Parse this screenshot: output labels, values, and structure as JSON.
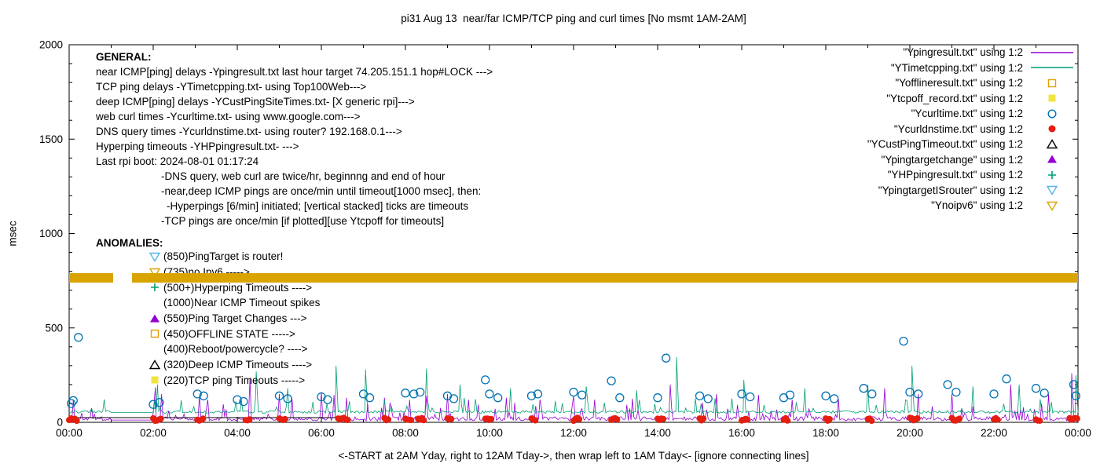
{
  "title": "pi31 Aug 13  near/far ICMP/TCP ping and curl times [No msmt 1AM-2AM]",
  "ylabel": "msec",
  "xnote": "<-START at 2AM Yday, right to 12AM Tday->, then wrap left to 1AM Tday<- [ignore connecting lines]",
  "general": {
    "heading": "GENERAL:",
    "lines": [
      {
        "text": "near ICMP[ping] delays -Ypingresult.txt last hour target 74.205.151.1 hop#LOCK --->",
        "indent": 0
      },
      {
        "text": "TCP ping delays -YTimetcpping.txt- using Top100Web--->",
        "indent": 0
      },
      {
        "text": "deep ICMP[ping] delays -YCustPingSiteTimes.txt- [X generic rpi]--->",
        "indent": 0
      },
      {
        "text": "web curl times -Ycurltime.txt- using www.google.com--->",
        "indent": 0
      },
      {
        "text": "DNS query times -Ycurldnstime.txt- using router? 192.168.0.1--->",
        "indent": 0
      },
      {
        "text": "Hyperping timeouts -YHPpingresult.txt- --->",
        "indent": 0
      },
      {
        "text": "Last rpi boot: 2024-08-01 01:17:24",
        "indent": 0
      },
      {
        "text": "-DNS query, web curl are twice/hr, beginnng and end of hour",
        "indent": 83
      },
      {
        "text": "-near,deep ICMP pings are once/min until timeout[1000 msec], then:",
        "indent": 83
      },
      {
        "text": "-Hyperpings [6/min] initiated; [vertical stacked] ticks are timeouts",
        "indent": 90
      },
      {
        "text": "-TCP pings are once/min [if plotted][use Ytcpoff for timeouts]",
        "indent": 83
      }
    ]
  },
  "anomalies": {
    "heading": "ANOMALIES:",
    "rows": [
      {
        "marker": "triangle-down-open",
        "color": "#56b4e9",
        "text": "(850)PingTarget is router!"
      },
      {
        "marker": "triangle-down-open",
        "color": "#d9a400",
        "text": "(735)no Ipv6 ----->"
      },
      {
        "marker": "plus",
        "color": "#009e73",
        "text": "(500+)Hyperping Timeouts ---->"
      },
      {
        "marker": "none",
        "color": "#000000",
        "text": "(1000)Near ICMP Timeout spikes"
      },
      {
        "marker": "triangle-up-filled",
        "color": "#9400d3",
        "text": "(550)Ping Target Changes --->"
      },
      {
        "marker": "square-open",
        "color": "#e69f00",
        "text": "(450)OFFLINE STATE ----->"
      },
      {
        "marker": "none",
        "color": "#000000",
        "text": "(400)Reboot/powercycle? ---->"
      },
      {
        "marker": "triangle-up-open",
        "color": "#000000",
        "text": "(320)Deep ICMP Timeouts ---->"
      },
      {
        "marker": "square-filled",
        "color": "#f0e442",
        "text": "(220)TCP ping Timeouts ----->"
      }
    ]
  },
  "legend": {
    "entries": [
      {
        "label": "\"Ypingresult.txt\" using 1:2",
        "marker": "line",
        "color": "#9400d3"
      },
      {
        "label": "\"YTimetcpping.txt\" using 1:2",
        "marker": "line",
        "color": "#009e73"
      },
      {
        "label": "\"Yofflineresult.txt\" using 1:2",
        "marker": "square-open",
        "color": "#e69f00"
      },
      {
        "label": "\"Ytcpoff_record.txt\" using 1:2",
        "marker": "square-filled",
        "color": "#f0e442"
      },
      {
        "label": "\"Ycurltime.txt\" using 1:2",
        "marker": "circle-open",
        "color": "#0072b2"
      },
      {
        "label": "\"Ycurldnstime.txt\" using 1:2",
        "marker": "circle-filled",
        "color": "#e51e10"
      },
      {
        "label": "\"YCustPingTimeout.txt\" using 1:2",
        "marker": "triangle-up-open",
        "color": "#000000"
      },
      {
        "label": "\"Ypingtargetchange\" using 1:2",
        "marker": "triangle-up-filled",
        "color": "#9400d3"
      },
      {
        "label": "\"YHPpingresult.txt\" using 1:2",
        "marker": "plus",
        "color": "#009e73"
      },
      {
        "label": "\"YpingtargetISrouter\" using 1:2",
        "marker": "triangle-down-open",
        "color": "#56b4e9"
      },
      {
        "label": "\"Ynoipv6\" using 1:2",
        "marker": "triangle-down-open",
        "color": "#d9a400"
      }
    ]
  },
  "chart_data": {
    "type": "line",
    "title": "pi31 Aug 13  near/far ICMP/TCP ping and curl times [No msmt 1AM-2AM]",
    "xlabel": "<-START at 2AM Yday, right to 12AM Tday->, then wrap left to 1AM Tday<- [ignore connecting lines]",
    "ylabel": "msec",
    "x_axis": {
      "range_hours": [
        0,
        24
      ],
      "tick_labels": [
        "00:00",
        "02:00",
        "04:00",
        "06:00",
        "08:00",
        "10:00",
        "12:00",
        "14:00",
        "16:00",
        "18:00",
        "20:00",
        "22:00",
        "00:00"
      ],
      "minor_tick_hours": 1
    },
    "y_axis": {
      "range": [
        0,
        2000
      ],
      "ticks": [
        0,
        500,
        1000,
        1500,
        2000
      ],
      "minor_tick_step": 100
    },
    "gap_note": "No msmt 1AM-2AM",
    "legend_position": "top-right",
    "grid": false,
    "series": [
      {
        "name": "near ICMP ping delay (Ypingresult.txt)",
        "style": "line",
        "color": "#9400d3",
        "base_msec": 8,
        "jitter_msec": 22,
        "burst_prob": 0.1,
        "burst_min_msec": 35,
        "burst_range_msec": 70,
        "flat_msec": 12,
        "spikes_hour_msec": [
          [
            0.1,
            120
          ],
          [
            2.05,
            185
          ],
          [
            2.2,
            150
          ],
          [
            3.1,
            140
          ],
          [
            3.3,
            120
          ],
          [
            4.3,
            230
          ],
          [
            5.0,
            150
          ],
          [
            5.3,
            130
          ],
          [
            6.0,
            160
          ],
          [
            6.3,
            145
          ],
          [
            6.6,
            130
          ],
          [
            7.5,
            130
          ],
          [
            8.1,
            120
          ],
          [
            8.5,
            140
          ],
          [
            9.0,
            150
          ],
          [
            9.5,
            120
          ],
          [
            10.4,
            130
          ],
          [
            11.2,
            120
          ],
          [
            12.0,
            140
          ],
          [
            12.5,
            120
          ],
          [
            13.4,
            125
          ],
          [
            14.3,
            200
          ],
          [
            15.4,
            150
          ],
          [
            16.4,
            145
          ],
          [
            17.2,
            120
          ],
          [
            18.3,
            125
          ],
          [
            19.4,
            180
          ],
          [
            20.2,
            150
          ],
          [
            21.0,
            150
          ],
          [
            22.4,
            200
          ],
          [
            23.3,
            150
          ],
          [
            23.85,
            260
          ]
        ]
      },
      {
        "name": "TCP ping delay (YTimetcpping.txt)",
        "style": "line",
        "color": "#009e73",
        "base_msec": 48,
        "jitter_msec": 14,
        "burst_prob": 0.07,
        "burst_min_msec": 70,
        "burst_range_msec": 60,
        "flat_msec": 52,
        "spikes_hour_msec": [
          [
            2.1,
            200
          ],
          [
            4.45,
            270
          ],
          [
            5.2,
            180
          ],
          [
            6.35,
            300
          ],
          [
            7.05,
            280
          ],
          [
            8.5,
            285
          ],
          [
            9.3,
            200
          ],
          [
            10.5,
            180
          ],
          [
            12.3,
            190
          ],
          [
            13.5,
            170
          ],
          [
            14.45,
            345
          ],
          [
            16.05,
            225
          ],
          [
            17.5,
            180
          ],
          [
            19.0,
            200
          ],
          [
            20.05,
            300
          ],
          [
            21.5,
            190
          ],
          [
            22.6,
            200
          ],
          [
            23.95,
            250
          ]
        ]
      },
      {
        "name": "deep ICMP ping (YCustPingSiteTimes.txt)",
        "style": "segment",
        "color": "#000000",
        "x_hours": [
          0,
          6.4
        ],
        "value_msec": 25
      },
      {
        "name": "web curl time (Ycurltime.txt)",
        "style": "circle-open",
        "color": "#0072b2",
        "points_hour_msec": [
          [
            0.05,
            100
          ],
          [
            0.1,
            115
          ],
          [
            0.22,
            450
          ],
          [
            2.0,
            95
          ],
          [
            2.15,
            105
          ],
          [
            3.05,
            150
          ],
          [
            3.2,
            140
          ],
          [
            4.0,
            120
          ],
          [
            4.15,
            110
          ],
          [
            5.0,
            140
          ],
          [
            5.2,
            125
          ],
          [
            6.0,
            135
          ],
          [
            6.15,
            120
          ],
          [
            7.0,
            150
          ],
          [
            7.15,
            130
          ],
          [
            8.0,
            155
          ],
          [
            8.2,
            150
          ],
          [
            8.35,
            160
          ],
          [
            9.0,
            140
          ],
          [
            9.15,
            125
          ],
          [
            9.9,
            225
          ],
          [
            10.0,
            150
          ],
          [
            10.2,
            130
          ],
          [
            11.0,
            140
          ],
          [
            11.15,
            150
          ],
          [
            12.0,
            160
          ],
          [
            12.2,
            145
          ],
          [
            12.9,
            220
          ],
          [
            13.1,
            130
          ],
          [
            14.0,
            130
          ],
          [
            14.2,
            340
          ],
          [
            15.0,
            140
          ],
          [
            15.2,
            125
          ],
          [
            16.0,
            150
          ],
          [
            16.2,
            135
          ],
          [
            17.0,
            130
          ],
          [
            17.15,
            145
          ],
          [
            18.0,
            140
          ],
          [
            18.2,
            125
          ],
          [
            18.9,
            180
          ],
          [
            19.1,
            150
          ],
          [
            19.85,
            430
          ],
          [
            20.0,
            160
          ],
          [
            20.2,
            150
          ],
          [
            20.9,
            200
          ],
          [
            21.1,
            160
          ],
          [
            22.0,
            150
          ],
          [
            22.3,
            230
          ],
          [
            23.0,
            180
          ],
          [
            23.2,
            155
          ],
          [
            23.9,
            200
          ],
          [
            23.95,
            140
          ]
        ]
      },
      {
        "name": "DNS query time (Ycurldnstime.txt)",
        "style": "circle-filled",
        "color": "#e51e10",
        "value_range_msec": [
          8,
          24
        ],
        "clusters_hour_count": [
          [
            0.0,
            5
          ],
          [
            2.0,
            5
          ],
          [
            3.05,
            4
          ],
          [
            4.2,
            3
          ],
          [
            5.0,
            4
          ],
          [
            6.4,
            6
          ],
          [
            7.5,
            3
          ],
          [
            8.0,
            4
          ],
          [
            8.3,
            4
          ],
          [
            9.0,
            3
          ],
          [
            9.9,
            4
          ],
          [
            11.0,
            3
          ],
          [
            12.0,
            4
          ],
          [
            12.9,
            4
          ],
          [
            14.0,
            4
          ],
          [
            15.0,
            3
          ],
          [
            16.0,
            4
          ],
          [
            17.0,
            3
          ],
          [
            18.0,
            3
          ],
          [
            19.0,
            3
          ],
          [
            20.0,
            5
          ],
          [
            21.0,
            5
          ],
          [
            22.0,
            3
          ],
          [
            23.0,
            3
          ],
          [
            23.8,
            5
          ]
        ]
      },
      {
        "name": "no ipv6 marker band (Ynoipv6)",
        "style": "band",
        "color": "#d9a400",
        "band_msec": [
          740,
          790
        ],
        "x_segments_hours": [
          [
            0,
            1.05
          ],
          [
            1.5,
            24
          ]
        ]
      }
    ]
  }
}
